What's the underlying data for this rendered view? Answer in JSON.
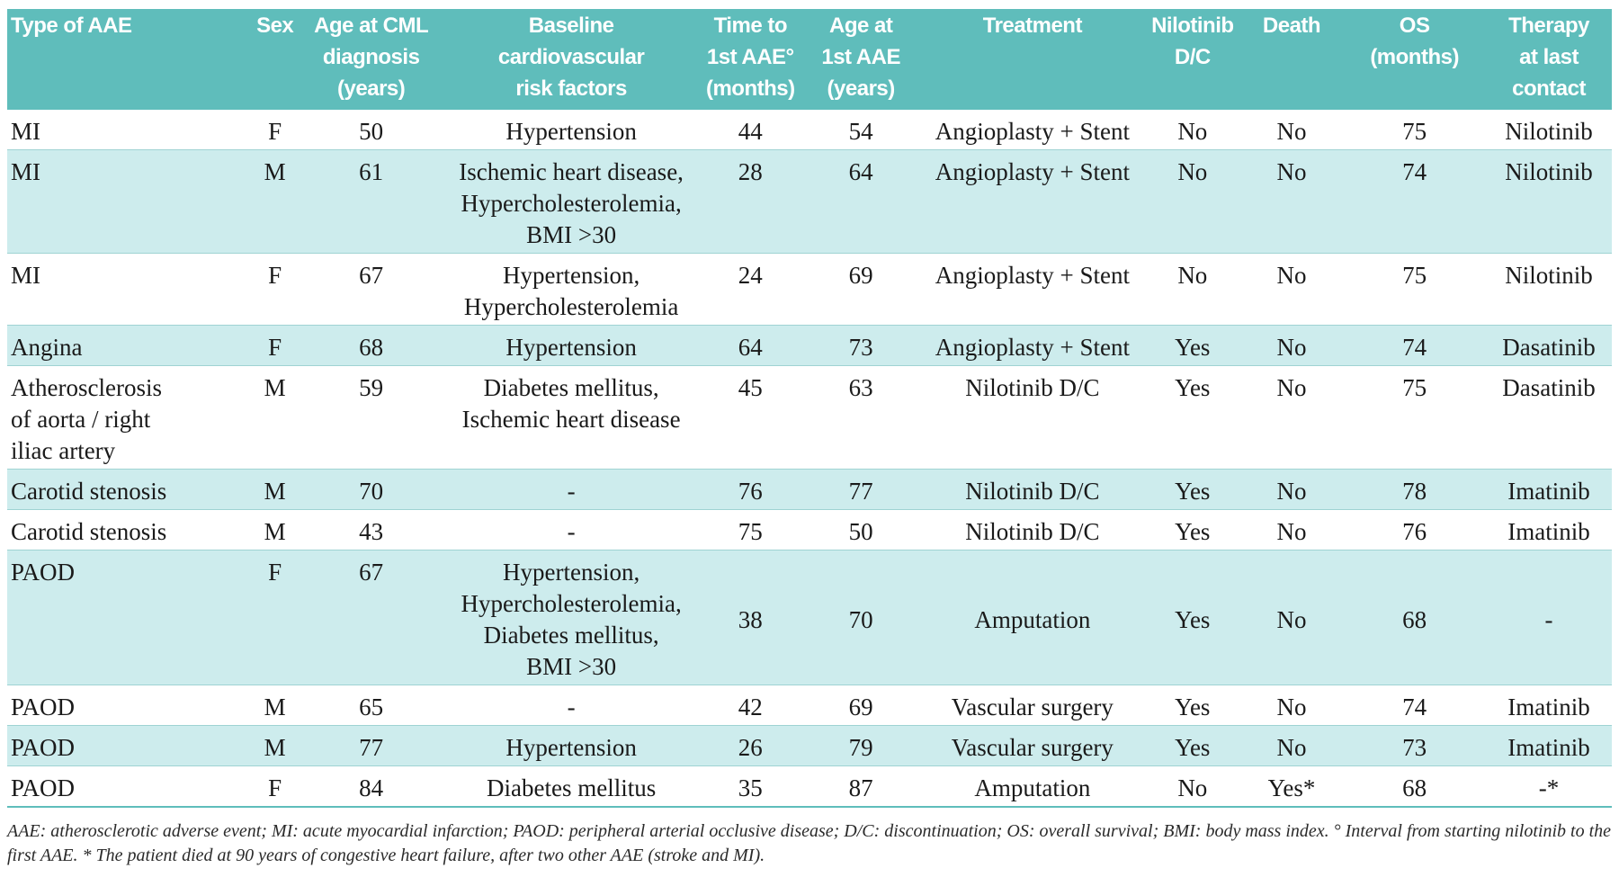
{
  "columns": [
    "Type of AAE",
    "Sex",
    "Age at CML\ndiagnosis\n(years)",
    "Baseline\ncardiovascular\nrisk factors",
    "Time to\n1st AAE°\n(months)",
    "Age at\n1st AAE\n(years)",
    "Treatment",
    "Nilotinib\nD/C",
    "Death",
    "OS\n(months)",
    "Therapy\nat last\ncontact"
  ],
  "rows": [
    {
      "type": "MI",
      "sex": "F",
      "age_dx": "50",
      "risk": "Hypertension",
      "time": "44",
      "age_aae": "54",
      "treatment": "Angioplasty + Stent",
      "dc": "No",
      "death": "No",
      "os": "75",
      "therapy": "Nilotinib"
    },
    {
      "type": "MI",
      "sex": "M",
      "age_dx": "61",
      "risk": "Ischemic heart disease,\nHypercholesterolemia,\nBMI >30",
      "time": "28",
      "age_aae": "64",
      "treatment": "Angioplasty + Stent",
      "dc": "No",
      "death": "No",
      "os": "74",
      "therapy": "Nilotinib"
    },
    {
      "type": "MI",
      "sex": "F",
      "age_dx": "67",
      "risk": "Hypertension,\nHypercholesterolemia",
      "time": "24",
      "age_aae": "69",
      "treatment": "Angioplasty + Stent",
      "dc": "No",
      "death": "No",
      "os": "75",
      "therapy": "Nilotinib"
    },
    {
      "type": "Angina",
      "sex": "F",
      "age_dx": "68",
      "risk": "Hypertension",
      "time": "64",
      "age_aae": "73",
      "treatment": "Angioplasty + Stent",
      "dc": "Yes",
      "death": "No",
      "os": "74",
      "therapy": "Dasatinib"
    },
    {
      "type": "Atherosclerosis\nof aorta / right\niliac artery",
      "sex": "M",
      "age_dx": "59",
      "risk": "Diabetes mellitus,\nIschemic heart disease",
      "time": "45",
      "age_aae": "63",
      "treatment": "Nilotinib D/C",
      "dc": "Yes",
      "death": "No",
      "os": "75",
      "therapy": "Dasatinib"
    },
    {
      "type": "Carotid stenosis",
      "sex": "M",
      "age_dx": "70",
      "risk": "-",
      "time": "76",
      "age_aae": "77",
      "treatment": "Nilotinib D/C",
      "dc": "Yes",
      "death": "No",
      "os": "78",
      "therapy": "Imatinib"
    },
    {
      "type": "Carotid stenosis",
      "sex": "M",
      "age_dx": "43",
      "risk": "-",
      "time": "75",
      "age_aae": "50",
      "treatment": "Nilotinib D/C",
      "dc": "Yes",
      "death": "No",
      "os": "76",
      "therapy": "Imatinib"
    },
    {
      "type": "PAOD",
      "sex": "F",
      "age_dx": "67",
      "risk": "Hypertension,\nHypercholesterolemia,\nDiabetes mellitus,\nBMI >30",
      "time": "38",
      "age_aae": "70",
      "treatment": "Amputation",
      "dc": "Yes",
      "death": "No",
      "os": "68",
      "therapy": "-"
    },
    {
      "type": "PAOD",
      "sex": "M",
      "age_dx": "65",
      "risk": "-",
      "time": "42",
      "age_aae": "69",
      "treatment": "Vascular surgery",
      "dc": "Yes",
      "death": "No",
      "os": "74",
      "therapy": "Imatinib"
    },
    {
      "type": "PAOD",
      "sex": "M",
      "age_dx": "77",
      "risk": "Hypertension",
      "time": "26",
      "age_aae": "79",
      "treatment": "Vascular surgery",
      "dc": "Yes",
      "death": "No",
      "os": "73",
      "therapy": "Imatinib"
    },
    {
      "type": "PAOD",
      "sex": "F",
      "age_dx": "84",
      "risk": "Diabetes mellitus",
      "time": "35",
      "age_aae": "87",
      "treatment": "Amputation",
      "dc": "No",
      "death": "Yes*",
      "os": "68",
      "therapy": "-*"
    }
  ],
  "footnote": "AAE: atherosclerotic adverse event; MI: acute myocardial infarction; PAOD: peripheral arterial occlusive disease; D/C: discontinuation; OS: overall survival; BMI: body mass index. ° Interval from starting nilotinib to the first AAE. * The patient died at 90 years of congestive heart failure, after two other AAE (stroke and MI).",
  "colors": {
    "header_bg": "#5fbdbb",
    "row_shade": "#cdeced",
    "header_text": "#ffffff"
  }
}
